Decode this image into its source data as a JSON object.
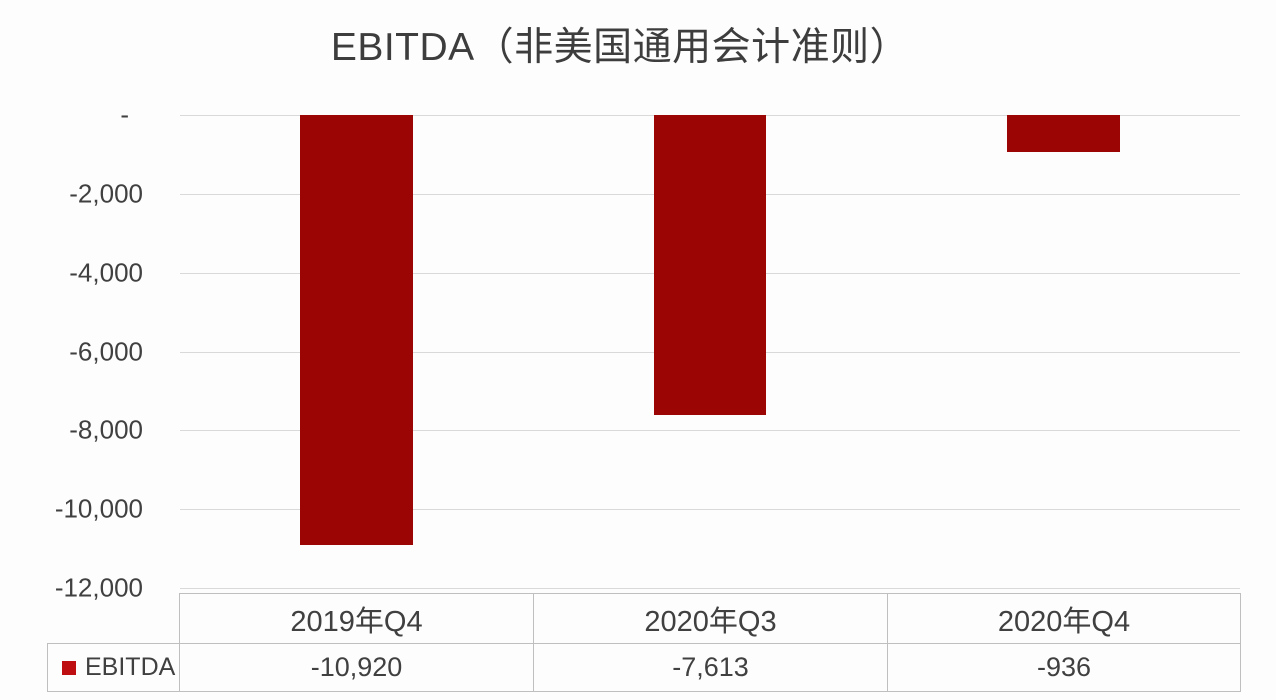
{
  "chart_data": {
    "type": "bar",
    "title": "EBITDA（非美国通用会计准则）",
    "categories": [
      "2019年Q4",
      "2020年Q3",
      "2020年Q4"
    ],
    "series": [
      {
        "name": "EBITDA",
        "values": [
          -10920,
          -7613,
          -936
        ],
        "display_values": [
          "-10,920",
          "-7,613",
          "-936"
        ]
      }
    ],
    "xlabel": "",
    "ylabel": "",
    "ylim": [
      -12000,
      0
    ],
    "y_tick_values": [
      0,
      -2000,
      -4000,
      -6000,
      -8000,
      -10000,
      -12000
    ],
    "y_tick_labels": [
      "-",
      "-2,000",
      "-4,000",
      "-6,000",
      "-8,000",
      "-10,000",
      "-12,000"
    ],
    "grid": true,
    "legend_position": "bottom-left-table",
    "colors": {
      "bar": "#9b0604",
      "legend_swatch": "#be0e11",
      "gridline": "#d9d9d9",
      "text": "#404040",
      "table_border": "#bfbfbf",
      "background": "#fdfdfd"
    }
  }
}
